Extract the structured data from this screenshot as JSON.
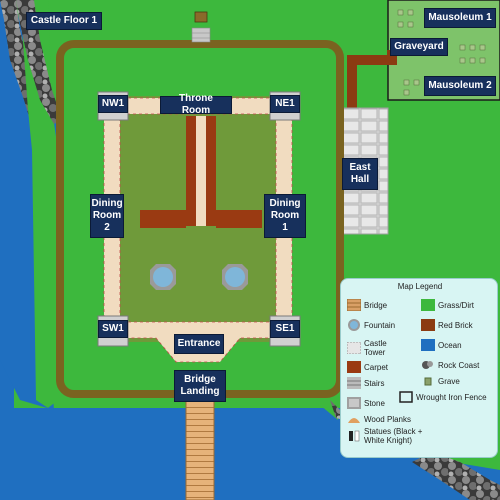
{
  "map": {
    "floor_label": "Castle Floor 1",
    "rooms": {
      "throne_room": "Throne Room",
      "nw1": "NW1",
      "ne1": "NE1",
      "dining_room_2": "Dining\nRoom\n2",
      "dining_room_1": "Dining\nRoom\n1",
      "sw1": "SW1",
      "se1": "SE1",
      "entrance": "Entrance",
      "bridge_landing": "Bridge\nLanding",
      "east_hall": "East\nHall",
      "graveyard": "Graveyard",
      "mausoleum_1": "Mausoleum 1",
      "mausoleum_2": "Mausoleum 2"
    },
    "colors": {
      "ocean": "#1f6fc0",
      "grass": "#3db83d",
      "courtyard": "#6f9a3a",
      "wall": "#f1dcc0",
      "carpet": "#9a3a12",
      "moat_border": "#7a6320",
      "label_bg": "#17305c",
      "legend_bg": "#d8f5f3"
    }
  },
  "legend": {
    "title": "Map Legend",
    "items": [
      {
        "label": "Bridge",
        "icon": "bridge-icon",
        "color": "#d9a066"
      },
      {
        "label": "Grass/Dirt",
        "icon": "grass-icon",
        "color": "#3db83d"
      },
      {
        "label": "Fountain",
        "icon": "fountain-icon",
        "color": "#7fb6d9"
      },
      {
        "label": "Red Brick",
        "icon": "red-brick-icon",
        "color": "#8b3b12"
      },
      {
        "label": "Castle\nTower",
        "icon": "castle-tower-icon",
        "color": "#e6e6e6"
      },
      {
        "label": "Ocean",
        "icon": "ocean-icon",
        "color": "#1f6fc0"
      },
      {
        "label": "Carpet",
        "icon": "carpet-icon",
        "color": "#9a3a12"
      },
      {
        "label": "Rock Coast",
        "icon": "rock-coast-icon",
        "color": "#555555"
      },
      {
        "label": "Stairs",
        "icon": "stairs-icon",
        "color": "#bbbbbb"
      },
      {
        "label": "Grave",
        "icon": "grave-icon",
        "color": "#8aa06a"
      },
      {
        "label": "Wrought Iron Fence",
        "icon": "fence-icon",
        "color": "#222222"
      },
      {
        "label": "Stone",
        "icon": "stone-icon",
        "color": "#a0a0a0"
      },
      {
        "label": "Wood Planks",
        "icon": "wood-planks-icon",
        "color": "#e0a060"
      },
      {
        "label": "Statues (Black +\nWhite Knight)",
        "icon": "statue-icon",
        "color": "#ffffff"
      }
    ]
  }
}
